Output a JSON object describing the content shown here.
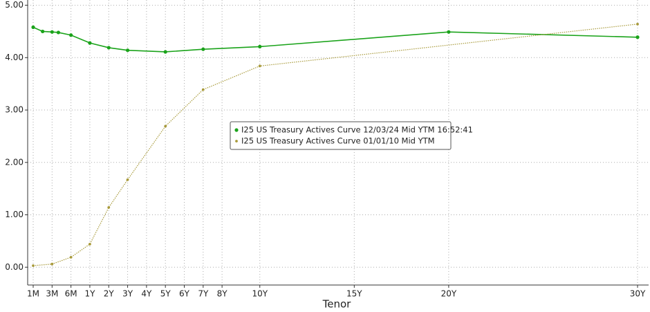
{
  "chart_data": {
    "type": "line",
    "x_label": "Tenor",
    "series": [
      {
        "name": "I25 US Treasury Actives Curve 12/03/24 Mid YTM 16:52:41",
        "color": "#1aa31a",
        "x": [
          0.0833,
          0.1667,
          0.25,
          0.3333,
          0.5,
          1,
          2,
          3,
          5,
          7,
          10,
          20,
          30
        ],
        "values": [
          4.58,
          4.5,
          4.49,
          4.48,
          4.43,
          4.28,
          4.19,
          4.14,
          4.11,
          4.16,
          4.21,
          4.49,
          4.39
        ]
      },
      {
        "name": "I25 US Treasury Actives Curve 01/01/10 Mid YTM",
        "color": "#a89a3a",
        "x": [
          0.0833,
          0.25,
          0.5,
          1,
          2,
          3,
          5,
          7,
          10,
          30
        ],
        "values": [
          0.03,
          0.06,
          0.19,
          0.44,
          1.14,
          1.67,
          2.69,
          3.39,
          3.84,
          4.64
        ]
      }
    ],
    "xlim": [
      0.0833,
      30
    ],
    "xticks": [
      {
        "value": 0.0833,
        "label": "1M"
      },
      {
        "value": 0.25,
        "label": "3M"
      },
      {
        "value": 0.5,
        "label": "6M"
      },
      {
        "value": 1,
        "label": "1Y"
      },
      {
        "value": 2,
        "label": "2Y"
      },
      {
        "value": 3,
        "label": "3Y"
      },
      {
        "value": 4,
        "label": "4Y"
      },
      {
        "value": 5,
        "label": "5Y"
      },
      {
        "value": 6,
        "label": "6Y"
      },
      {
        "value": 7,
        "label": "7Y"
      },
      {
        "value": 8,
        "label": "8Y"
      },
      {
        "value": 10,
        "label": "10Y"
      },
      {
        "value": 15,
        "label": "15Y"
      },
      {
        "value": 20,
        "label": "20Y"
      },
      {
        "value": 30,
        "label": "30Y"
      }
    ],
    "ylim": [
      -0.34,
      5.1
    ],
    "yticks": [
      {
        "value": 0,
        "label": "0.00"
      },
      {
        "value": 1,
        "label": "1.00"
      },
      {
        "value": 2,
        "label": "2.00"
      },
      {
        "value": 3,
        "label": "3.00"
      },
      {
        "value": 4,
        "label": "4.00"
      },
      {
        "value": 5,
        "label": "5.00"
      }
    ],
    "grid": true,
    "legend": "center"
  }
}
